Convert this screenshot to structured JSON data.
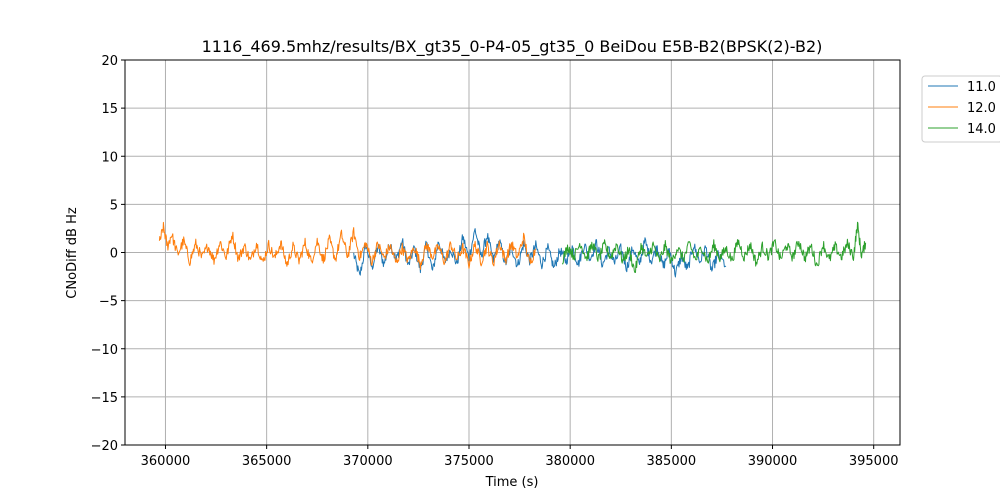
{
  "chart_data": {
    "type": "line",
    "title": "1116_469.5mhz/results/BX_gt35_0-P4-05_gt35_0 BeiDou E5B-B2(BPSK(2)-B2)",
    "xlabel": "Time (s)",
    "ylabel": "CNoDiff dB Hz",
    "xlim": [
      358000,
      396300
    ],
    "ylim": [
      -20,
      20
    ],
    "xticks": [
      360000,
      365000,
      370000,
      375000,
      380000,
      385000,
      390000,
      395000
    ],
    "xtick_labels": [
      "360000",
      "365000",
      "370000",
      "375000",
      "380000",
      "385000",
      "390000",
      "395000"
    ],
    "yticks": [
      -20,
      -15,
      -10,
      -5,
      0,
      5,
      10,
      15,
      20
    ],
    "ytick_labels": [
      "−20",
      "−15",
      "−10",
      "−5",
      "0",
      "5",
      "10",
      "15",
      "20"
    ],
    "grid": true,
    "legend_position": "outside-top-right",
    "series": [
      {
        "name": "11.0",
        "color": "#1f77b4",
        "x_range": [
          369300,
          387700
        ],
        "points": [
          [
            369300,
            -0.2
          ],
          [
            369600,
            -2.5
          ],
          [
            369900,
            0.8
          ],
          [
            370200,
            -1.6
          ],
          [
            370500,
            0.6
          ],
          [
            370800,
            -1.2
          ],
          [
            371100,
            1.0
          ],
          [
            371400,
            -0.8
          ],
          [
            371700,
            1.2
          ],
          [
            372000,
            -1.4
          ],
          [
            372300,
            0.5
          ],
          [
            372600,
            -1.8
          ],
          [
            372900,
            0.9
          ],
          [
            373200,
            -2.0
          ],
          [
            373500,
            1.2
          ],
          [
            373800,
            -1.0
          ],
          [
            374100,
            0.4
          ],
          [
            374400,
            -1.2
          ],
          [
            374700,
            1.6
          ],
          [
            375000,
            -0.6
          ],
          [
            375300,
            2.4
          ],
          [
            375600,
            -0.4
          ],
          [
            375900,
            1.8
          ],
          [
            376200,
            -0.8
          ],
          [
            376500,
            1.2
          ],
          [
            376800,
            -1.2
          ],
          [
            377100,
            0.6
          ],
          [
            377400,
            -1.4
          ],
          [
            377700,
            0.9
          ],
          [
            378000,
            -0.8
          ],
          [
            378300,
            0.7
          ],
          [
            378600,
            -1.2
          ],
          [
            378900,
            0.4
          ],
          [
            379200,
            -1.6
          ],
          [
            379500,
            0.2
          ],
          [
            379800,
            -0.9
          ],
          [
            380100,
            0.6
          ],
          [
            380400,
            -1.2
          ],
          [
            380700,
            0.8
          ],
          [
            381000,
            -0.6
          ],
          [
            381300,
            1.0
          ],
          [
            381600,
            -1.3
          ],
          [
            381900,
            0.3
          ],
          [
            382200,
            -1.1
          ],
          [
            382500,
            0.4
          ],
          [
            382800,
            -1.6
          ],
          [
            383100,
            0.5
          ],
          [
            383400,
            -1.3
          ],
          [
            383700,
            1.2
          ],
          [
            384000,
            -0.9
          ],
          [
            384300,
            0.6
          ],
          [
            384600,
            -1.5
          ],
          [
            384900,
            0.3
          ],
          [
            385200,
            -2.2
          ],
          [
            385500,
            -0.4
          ],
          [
            385800,
            -1.8
          ],
          [
            386100,
            0.8
          ],
          [
            386400,
            -1.0
          ],
          [
            386700,
            0.5
          ],
          [
            387000,
            -1.9
          ],
          [
            387300,
            -0.2
          ],
          [
            387700,
            -1.4
          ]
        ]
      },
      {
        "name": "12.0",
        "color": "#ff7f0e",
        "x_range": [
          359700,
          378300
        ],
        "points": [
          [
            359700,
            1.0
          ],
          [
            359900,
            2.6
          ],
          [
            360100,
            0.6
          ],
          [
            360300,
            1.9
          ],
          [
            360600,
            -0.2
          ],
          [
            360900,
            1.2
          ],
          [
            361200,
            -0.9
          ],
          [
            361500,
            0.9
          ],
          [
            361800,
            -0.6
          ],
          [
            362100,
            0.7
          ],
          [
            362400,
            -0.8
          ],
          [
            362700,
            1.1
          ],
          [
            363000,
            -0.5
          ],
          [
            363300,
            1.9
          ],
          [
            363600,
            -0.7
          ],
          [
            363900,
            0.7
          ],
          [
            364200,
            -0.9
          ],
          [
            364500,
            1.0
          ],
          [
            364800,
            -1.1
          ],
          [
            365100,
            0.8
          ],
          [
            365400,
            -0.6
          ],
          [
            365700,
            1.0
          ],
          [
            366000,
            -1.3
          ],
          [
            366300,
            0.6
          ],
          [
            366600,
            -0.9
          ],
          [
            366900,
            1.0
          ],
          [
            367200,
            -1.0
          ],
          [
            367500,
            1.2
          ],
          [
            367800,
            -0.8
          ],
          [
            368100,
            1.3
          ],
          [
            368400,
            -0.7
          ],
          [
            368700,
            1.9
          ],
          [
            369000,
            -0.4
          ],
          [
            369300,
            2.1
          ],
          [
            369600,
            -0.5
          ],
          [
            369900,
            1.0
          ],
          [
            370200,
            -1.0
          ],
          [
            370500,
            0.9
          ],
          [
            370800,
            -0.6
          ],
          [
            371100,
            0.7
          ],
          [
            371400,
            -1.1
          ],
          [
            371700,
            0.5
          ],
          [
            372000,
            -0.9
          ],
          [
            372300,
            0.6
          ],
          [
            372600,
            -1.2
          ],
          [
            372900,
            0.8
          ],
          [
            373200,
            -0.4
          ],
          [
            373500,
            0.6
          ],
          [
            373800,
            -1.0
          ],
          [
            374100,
            0.9
          ],
          [
            374400,
            -0.7
          ],
          [
            374700,
            0.5
          ],
          [
            375000,
            -1.2
          ],
          [
            375300,
            0.8
          ],
          [
            375600,
            -0.9
          ],
          [
            375900,
            0.7
          ],
          [
            376200,
            -1.1
          ],
          [
            376500,
            1.0
          ],
          [
            376800,
            -0.8
          ],
          [
            377100,
            0.9
          ],
          [
            377400,
            -0.5
          ],
          [
            377700,
            1.6
          ],
          [
            378000,
            -1.2
          ],
          [
            378300,
            0.4
          ]
        ]
      },
      {
        "name": "14.0",
        "color": "#2ca02c",
        "x_range": [
          379600,
          394600
        ],
        "points": [
          [
            379600,
            -0.8
          ],
          [
            379900,
            0.6
          ],
          [
            380200,
            -0.4
          ],
          [
            380500,
            1.0
          ],
          [
            380800,
            -0.6
          ],
          [
            381100,
            0.9
          ],
          [
            381400,
            -0.7
          ],
          [
            381700,
            0.8
          ],
          [
            382000,
            -0.5
          ],
          [
            382300,
            0.9
          ],
          [
            382600,
            -0.9
          ],
          [
            382900,
            0.3
          ],
          [
            383200,
            -2.0
          ],
          [
            383500,
            0.7
          ],
          [
            383800,
            -0.6
          ],
          [
            384100,
            0.8
          ],
          [
            384400,
            -0.9
          ],
          [
            384700,
            0.7
          ],
          [
            385000,
            -1.0
          ],
          [
            385300,
            0.5
          ],
          [
            385600,
            -0.7
          ],
          [
            385900,
            0.9
          ],
          [
            386200,
            -0.8
          ],
          [
            386500,
            0.6
          ],
          [
            386800,
            -1.0
          ],
          [
            387100,
            0.8
          ],
          [
            387400,
            -0.6
          ],
          [
            387700,
            0.4
          ],
          [
            388000,
            -0.8
          ],
          [
            388300,
            1.2
          ],
          [
            388600,
            -0.5
          ],
          [
            388900,
            0.8
          ],
          [
            389200,
            -1.1
          ],
          [
            389500,
            0.6
          ],
          [
            389800,
            -0.4
          ],
          [
            390100,
            1.0
          ],
          [
            390400,
            -0.7
          ],
          [
            390700,
            0.8
          ],
          [
            391000,
            -0.5
          ],
          [
            391300,
            1.2
          ],
          [
            391600,
            -0.6
          ],
          [
            391900,
            0.7
          ],
          [
            392200,
            -1.4
          ],
          [
            392500,
            0.9
          ],
          [
            392800,
            -0.8
          ],
          [
            393100,
            0.6
          ],
          [
            393400,
            -0.5
          ],
          [
            393700,
            0.9
          ],
          [
            394000,
            -0.4
          ],
          [
            394200,
            2.9
          ],
          [
            394400,
            -0.3
          ],
          [
            394600,
            1.0
          ]
        ]
      }
    ]
  }
}
